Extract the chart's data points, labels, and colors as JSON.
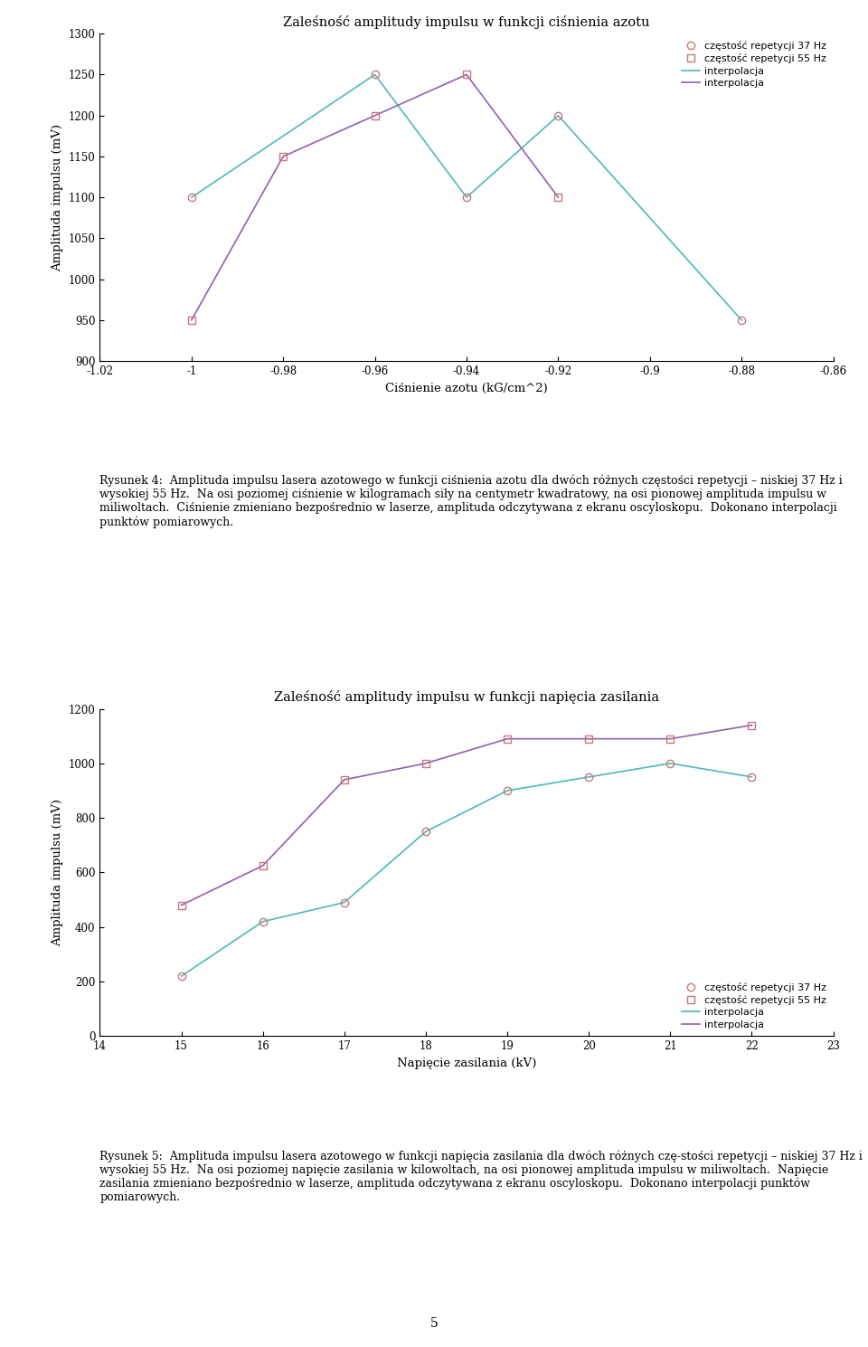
{
  "fig_width": 9.6,
  "fig_height": 14.89,
  "fig_dpi": 100,
  "plot1": {
    "title": "Zaleśność amplitudy impulsu w funkcji ciśnienia azotu",
    "xlabel": "Ciśnienie azotu (kG/cm^2)",
    "ylabel": "Amplituda impulsu (mV)",
    "xlim": [
      -1.02,
      -0.86
    ],
    "ylim": [
      900,
      1300
    ],
    "xticks": [
      -1.02,
      -1.0,
      -0.98,
      -0.96,
      -0.94,
      -0.92,
      -0.9,
      -0.88,
      -0.86
    ],
    "xtick_labels": [
      "-1.02",
      "-1",
      "-0.98",
      "-0.96",
      "-0.94",
      "-0.92",
      "-0.9",
      "-0.88",
      "-0.86"
    ],
    "yticks": [
      900,
      950,
      1000,
      1050,
      1100,
      1150,
      1200,
      1250,
      1300
    ],
    "series1_x": [
      -1.0,
      -0.96,
      -0.94,
      -0.92,
      -0.88
    ],
    "series1_y": [
      1100,
      1250,
      1100,
      1200,
      950
    ],
    "series2_x": [
      -1.0,
      -0.98,
      -0.96,
      -0.94,
      -0.92
    ],
    "series2_y": [
      950,
      1150,
      1200,
      1250,
      1100
    ],
    "color1": "#c87878",
    "color2": "#c87878",
    "interp_color1": "#50b8b8",
    "interp_color2": "#9060b0",
    "legend_labels": [
      "częstość repetycji 37 Hz",
      "częstość repetycji 55 Hz",
      "interpolacja",
      "interpolacja"
    ]
  },
  "plot2": {
    "title": "Zaleśność amplitudy impulsu w funkcji napięcia zasilania",
    "xlabel": "Napięcie zasilania (kV)",
    "ylabel": "Amplituda impulsu (mV)",
    "xlim": [
      14,
      23
    ],
    "ylim": [
      0,
      1200
    ],
    "xticks": [
      14,
      15,
      16,
      17,
      18,
      19,
      20,
      21,
      22,
      23
    ],
    "xtick_labels": [
      "14",
      "15",
      "16",
      "17",
      "18",
      "19",
      "20",
      "21",
      "22",
      "23"
    ],
    "yticks": [
      0,
      200,
      400,
      600,
      800,
      1000,
      1200
    ],
    "series1_x": [
      15,
      16,
      17,
      18,
      19,
      20,
      21,
      22
    ],
    "series1_y": [
      220,
      420,
      490,
      750,
      900,
      950,
      1000,
      950
    ],
    "series2_x": [
      15,
      16,
      17,
      18,
      19,
      20,
      21,
      22
    ],
    "series2_y": [
      480,
      625,
      940,
      1000,
      1090,
      1090,
      1090,
      1140
    ],
    "color1": "#c87878",
    "color2": "#c87878",
    "interp_color1": "#50b8b8",
    "interp_color2": "#9060b0",
    "legend_labels": [
      "częstość repetycji 37 Hz",
      "częstość repetycji 55 Hz",
      "interpolacja",
      "interpolacja"
    ]
  },
  "caption1_bold": "Rysunek 4:",
  "caption1_rest": "  Amplituda impulsu lasera azotowego w funkcji ciśnienia azotu dla dwóch różnych częstości repetycji – niskiej 37 Hz i wysokiej 55 Hz.  Na osi poziomej ciśnienie w kilogramach siły na centymetr kwadratowy, na osi pionowej amplituda impulsu w miliwoltach.  Ciśnienie zmieniano bezpośrednio w laserze, amplituda odczytywana z ekranu oscyloskopu.  Dokonano interpolacji punktów pomiarowych.",
  "caption2_bold": "Rysunek 5:",
  "caption2_rest": "  Amplituda impulsu lasera azotowego w funkcji napięcia zasilania dla dwóch różnych czę-stości repetycji – niskiej 37 Hz i wysokiej 55 Hz.  Na osi poziomej napięcie zasilania w kilowoltach, na osi pionowej amplituda impulsu w miliwoltach.  Napięcie zasilania zmieniano bezpośrednio w laserze, amplituda odczytywana z ekranu oscyloskopu.  Dokonano interpolacji punktów pomiarowych.",
  "page_number": "5"
}
